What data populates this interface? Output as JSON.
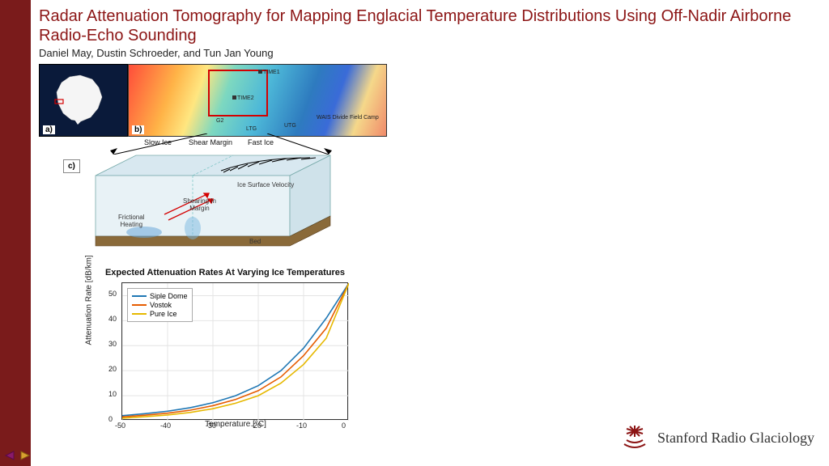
{
  "title": "Radar Attenuation Tomography for Mapping Englacial Temperature Distributions Using Off-Nadir Airborne Radio-Echo Sounding",
  "authors": "Daniel May, Dustin Schroeder, and Tun Jan Young",
  "colors": {
    "accent": "#8c1515",
    "sidebar": "#7a1b1b",
    "siple": "#1f77b4",
    "vostok": "#e65c00",
    "pure": "#e6b800"
  },
  "panel_a": {
    "label": "a)"
  },
  "panel_b": {
    "label": "b)",
    "markers": {
      "time1": "TIME1",
      "time2": "TIME2",
      "g2": "G2",
      "ltg": "LTG",
      "utg": "UTG",
      "wais": "WAIS Divide Field Camp"
    }
  },
  "panel_c": {
    "label": "c)",
    "slow": "Slow Ice",
    "shear": "Shear Margin",
    "fast": "Fast Ice",
    "velocity": "Ice Surface Velocity",
    "shearing": "Shearing In\nMargin",
    "friction": "Frictional\nHeating",
    "bed": "Bed"
  },
  "chart": {
    "title": "Expected Attenuation Rates At Varying Ice Temperatures",
    "ylabel": "Attenuation Rate [dB/km]",
    "xlabel": "Temperature [°C]",
    "xlim": [
      -50,
      0
    ],
    "ylim": [
      0,
      55
    ],
    "xticks": [
      -50,
      -40,
      -30,
      -20,
      -10,
      0
    ],
    "yticks": [
      0,
      10,
      20,
      30,
      40,
      50
    ],
    "legend": {
      "siple": "Siple Dome",
      "vostok": "Vostok",
      "pure": "Pure Ice"
    },
    "series": {
      "siple": {
        "x": [
          -50,
          -45,
          -40,
          -35,
          -30,
          -25,
          -20,
          -15,
          -10,
          -5,
          0
        ],
        "y": [
          2,
          2.8,
          3.8,
          5.2,
          7.2,
          10,
          14,
          20,
          29,
          41,
          55
        ],
        "color": "#1f77b4"
      },
      "vostok": {
        "x": [
          -50,
          -45,
          -40,
          -35,
          -30,
          -25,
          -20,
          -15,
          -10,
          -5,
          0
        ],
        "y": [
          1.5,
          2.2,
          3,
          4.2,
          6,
          8.5,
          12,
          17.5,
          26,
          37,
          55
        ],
        "color": "#e65c00"
      },
      "pure": {
        "x": [
          -50,
          -45,
          -40,
          -35,
          -30,
          -25,
          -20,
          -15,
          -10,
          -5,
          0
        ],
        "y": [
          1,
          1.6,
          2.3,
          3.3,
          4.8,
          7,
          10,
          15,
          22.5,
          33,
          55
        ],
        "color": "#e6b800"
      }
    }
  },
  "logo": {
    "text": "Stanford Radio Glaciology"
  }
}
